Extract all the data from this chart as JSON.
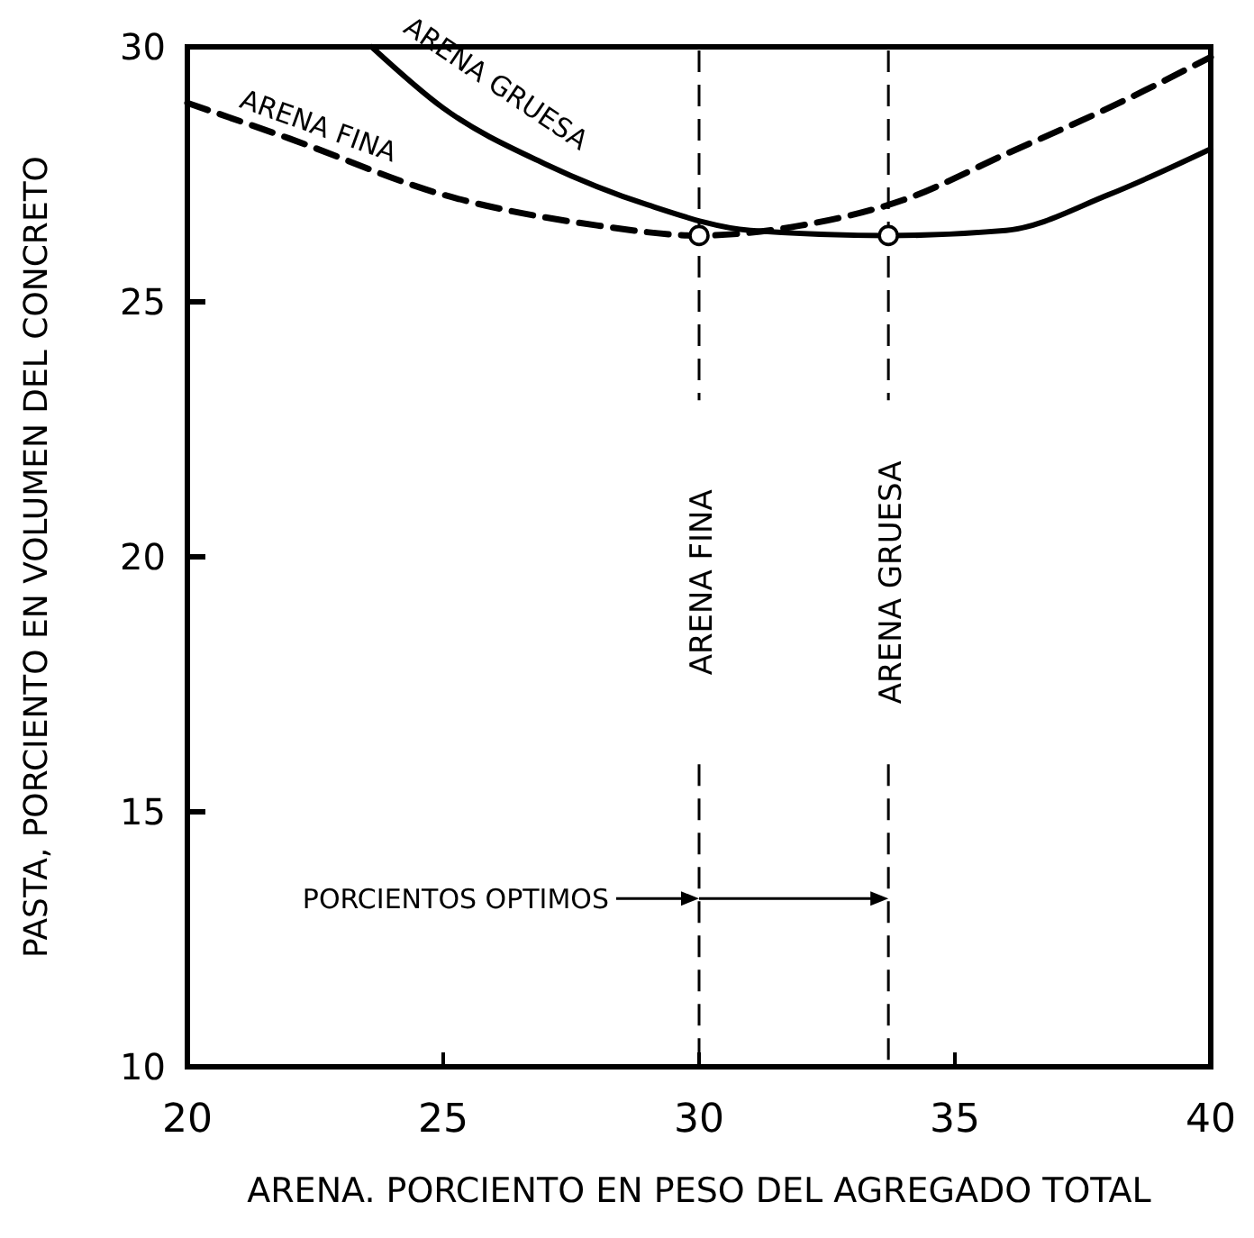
{
  "chart_data": {
    "type": "line",
    "xlabel": "ARENA. PORCIENTO EN PESO DEL AGREGADO TOTAL",
    "ylabel": "PASTA, PORCIENTO EN VOLUMEN DEL CONCRETO",
    "xlim": [
      20,
      40
    ],
    "ylim": [
      10,
      30
    ],
    "xticks": [
      20,
      25,
      30,
      35,
      40
    ],
    "yticks": [
      10,
      15,
      20,
      25,
      30
    ],
    "grid": false,
    "series": [
      {
        "name": "ARENA FINA",
        "color": "#000000",
        "line_style": "dashed",
        "x": [
          20,
          22,
          25,
          28,
          30,
          32,
          34,
          36,
          38,
          40
        ],
        "values": [
          28.9,
          28.2,
          27.1,
          26.5,
          26.3,
          26.5,
          27.0,
          27.9,
          28.8,
          29.8
        ]
      },
      {
        "name": "ARENA GRUESA",
        "color": "#000000",
        "line_style": "solid",
        "x": [
          23.6,
          25,
          27,
          29,
          31,
          33.7,
          36,
          38,
          40
        ],
        "values": [
          30,
          28.8,
          27.7,
          26.9,
          26.4,
          26.3,
          26.4,
          27.1,
          28.0
        ]
      },
      {
        "type": "scatter",
        "color": "#000000",
        "marker": "circle",
        "x": [
          30,
          33.7
        ],
        "values": [
          26.3,
          26.3
        ]
      }
    ],
    "ref_lines": [
      {
        "axis": "x",
        "value": 30,
        "label": "ARENA FINA",
        "line_style": "dashed"
      },
      {
        "axis": "x",
        "value": 33.7,
        "label": "ARENA GRUESA",
        "line_style": "dashed"
      }
    ],
    "annotations": [
      "PORCIENTOS OPTIMOS"
    ]
  }
}
